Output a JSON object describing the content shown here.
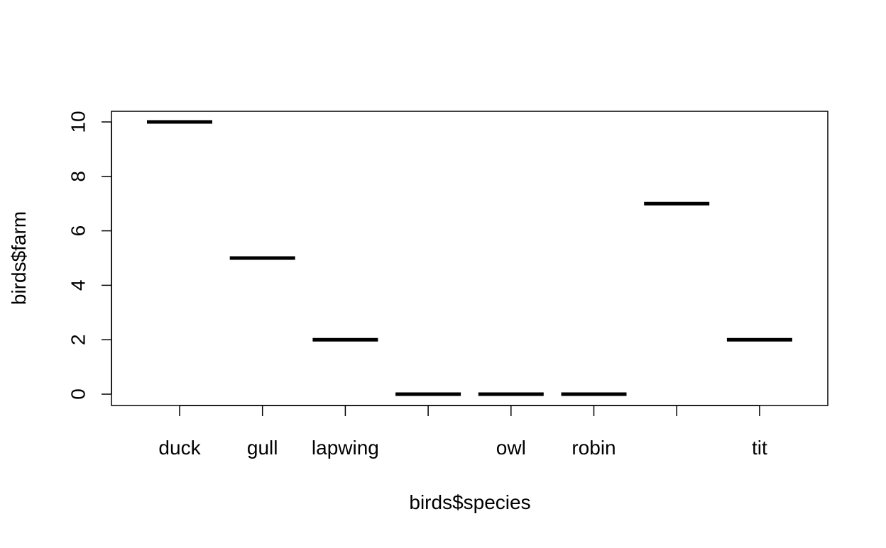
{
  "chart_data": {
    "type": "line",
    "variant": "categorical-median-segments",
    "categories": [
      "duck",
      "gull",
      "lapwing",
      "",
      "owl",
      "robin",
      "",
      "tit"
    ],
    "values": [
      10,
      5,
      2,
      0,
      0,
      0,
      7,
      2
    ],
    "xlabel": "birds$species",
    "ylabel": "birds$farm",
    "ylim": [
      0,
      10
    ],
    "yticks": [
      0,
      2,
      4,
      6,
      8,
      10
    ],
    "ytick_labels": [
      "0",
      "2",
      "4",
      "6",
      "8",
      "10"
    ],
    "grid": false,
    "legend": "none",
    "colors": {
      "line": "#000000",
      "axis": "#000000",
      "background": "#ffffff"
    }
  }
}
